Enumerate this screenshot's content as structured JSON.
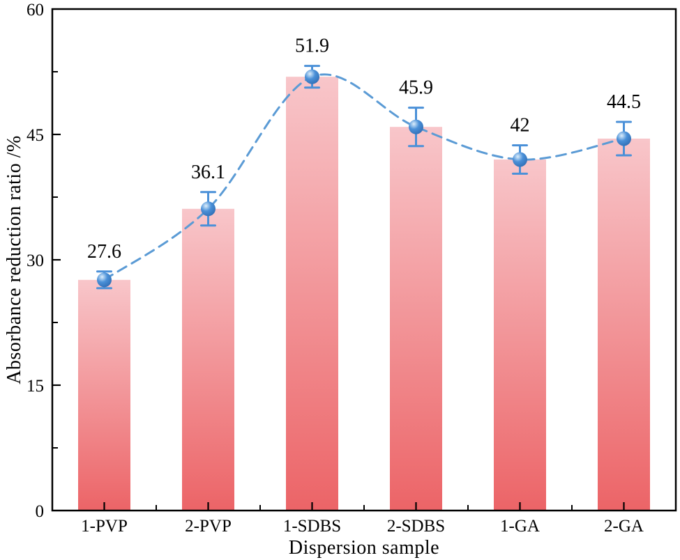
{
  "chart_data": {
    "type": "bar",
    "title": "",
    "xlabel": "Dispersion sample",
    "ylabel": "Absorbance reduction ratio /%",
    "categories": [
      "1-PVP",
      "2-PVP",
      "1-SDBS",
      "2-SDBS",
      "1-GA",
      "2-GA"
    ],
    "values": [
      27.6,
      36.1,
      51.9,
      45.9,
      42,
      44.5
    ],
    "value_labels": [
      "27.6",
      "36.1",
      "51.9",
      "45.9",
      "42",
      "44.5"
    ],
    "errors": [
      1.0,
      2.0,
      1.3,
      2.3,
      1.7,
      2.0
    ],
    "ylim": [
      0,
      60
    ],
    "yticks": [
      0,
      15,
      30,
      45,
      60
    ],
    "ytick_labels": [
      "0",
      "15",
      "30",
      "45",
      "60"
    ],
    "minor_ytick_values": [
      7.5,
      22.5,
      37.5,
      52.5
    ],
    "grid": false,
    "legend": null,
    "overlay": "dashed smooth line with spherical markers and error bars through bar tops",
    "colors": {
      "bar_gradient_top": "#f8c6ca",
      "bar_gradient_bottom": "#ec6467",
      "dashed_line": "#5b9bd5",
      "error_bar": "#4a90d8",
      "marker_fill": "#4a90d8",
      "marker_highlight": "#ddeefb",
      "marker_edge": "#2f6cb2",
      "axis_frame": "#000000",
      "text": "#000000",
      "background": "#ffffff"
    }
  }
}
